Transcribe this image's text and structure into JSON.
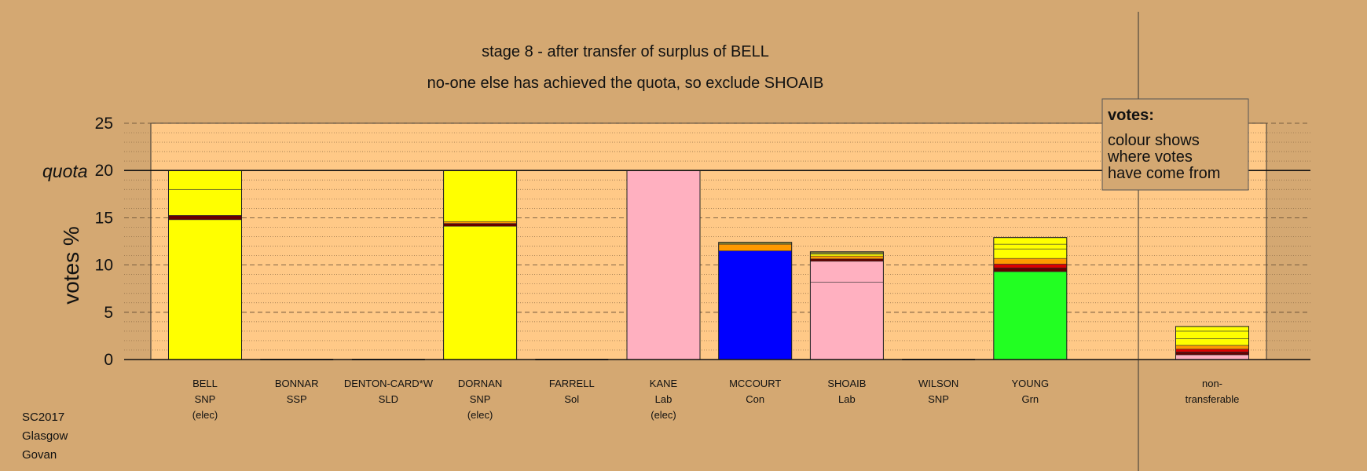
{
  "footer": [
    "SC2017",
    "Glasgow",
    "Govan"
  ],
  "legend": {
    "title": "votes:",
    "lines": [
      "colour shows",
      "where votes",
      "have come from"
    ]
  },
  "colors": {
    "background": "#D4A872",
    "plot_background": "#FFC987",
    "SNP": "#FFFF00",
    "Lab": "#FFB0C0",
    "Con": "#0000FF",
    "Grn": "#22FF22",
    "dark_red": "#660000",
    "red": "#DD0000",
    "orange": "#FF9900",
    "olive": "#888833"
  },
  "chart_data": {
    "type": "bar",
    "stacked": true,
    "title": "stage 8 - after transfer of surplus of BELL",
    "subtitle": "no-one else has achieved the quota, so exclude SHOAIB",
    "ylabel": "votes %",
    "ylim": [
      0,
      25
    ],
    "yticks": [
      0,
      5,
      10,
      15,
      20,
      25
    ],
    "quota": 20,
    "quota_label": "quota",
    "grid": "dashed major, dotted minor",
    "legend_position": "top-right",
    "candidates": [
      {
        "name": "BELL",
        "party": "SNP",
        "status": "(elec)",
        "segments": [
          {
            "value": 14.8,
            "color": "#FFFF00"
          },
          {
            "value": 0.45,
            "color": "#660000"
          },
          {
            "value": 2.75,
            "color": "#FFFF00"
          },
          {
            "value": 2.0,
            "color": "#FFFF00"
          }
        ]
      },
      {
        "name": "BONNAR",
        "party": "SSP",
        "status": "",
        "segments": []
      },
      {
        "name": "DENTON-CARD*W",
        "party": "SLD",
        "status": "",
        "segments": []
      },
      {
        "name": "DORNAN",
        "party": "SNP",
        "status": "(elec)",
        "segments": [
          {
            "value": 14.1,
            "color": "#FFFF00"
          },
          {
            "value": 0.3,
            "color": "#660000"
          },
          {
            "value": 0.2,
            "color": "#FF9900"
          },
          {
            "value": 5.4,
            "color": "#FFFF00"
          }
        ]
      },
      {
        "name": "FARRELL",
        "party": "Sol",
        "status": "",
        "segments": []
      },
      {
        "name": "KANE",
        "party": "Lab",
        "status": "(elec)",
        "segments": [
          {
            "value": 20.0,
            "color": "#FFB0C0"
          }
        ]
      },
      {
        "name": "MCCOURT",
        "party": "Con",
        "status": "",
        "segments": [
          {
            "value": 11.5,
            "color": "#0000FF"
          },
          {
            "value": 0.7,
            "color": "#FF9900"
          },
          {
            "value": 0.2,
            "color": "#888833"
          }
        ]
      },
      {
        "name": "SHOAIB",
        "party": "Lab",
        "status": "",
        "segments": [
          {
            "value": 8.2,
            "color": "#FFB0C0"
          },
          {
            "value": 2.2,
            "color": "#FFB0C0"
          },
          {
            "value": 0.25,
            "color": "#660000"
          },
          {
            "value": 0.3,
            "color": "#FF9900"
          },
          {
            "value": 0.2,
            "color": "#FFFF00"
          },
          {
            "value": 0.25,
            "color": "#888833"
          }
        ]
      },
      {
        "name": "WILSON",
        "party": "SNP",
        "status": "",
        "segments": []
      },
      {
        "name": "YOUNG",
        "party": "Grn",
        "status": "",
        "segments": [
          {
            "value": 9.3,
            "color": "#22FF22"
          },
          {
            "value": 0.4,
            "color": "#660000"
          },
          {
            "value": 0.4,
            "color": "#DD0000"
          },
          {
            "value": 0.6,
            "color": "#FF9900"
          },
          {
            "value": 1.0,
            "color": "#FFFF00"
          },
          {
            "value": 0.5,
            "color": "#FFFF00"
          },
          {
            "value": 0.7,
            "color": "#FFFF00"
          }
        ]
      },
      {
        "name": "non-",
        "party": "transferable",
        "status": "",
        "segments": [
          {
            "value": 0.5,
            "color": "#FFB0C0"
          },
          {
            "value": 0.3,
            "color": "#660000"
          },
          {
            "value": 0.3,
            "color": "#DD0000"
          },
          {
            "value": 0.4,
            "color": "#FF9900"
          },
          {
            "value": 0.7,
            "color": "#FFFF00"
          },
          {
            "value": 0.8,
            "color": "#FFFF00"
          },
          {
            "value": 0.5,
            "color": "#FFFF00"
          }
        ]
      }
    ]
  }
}
